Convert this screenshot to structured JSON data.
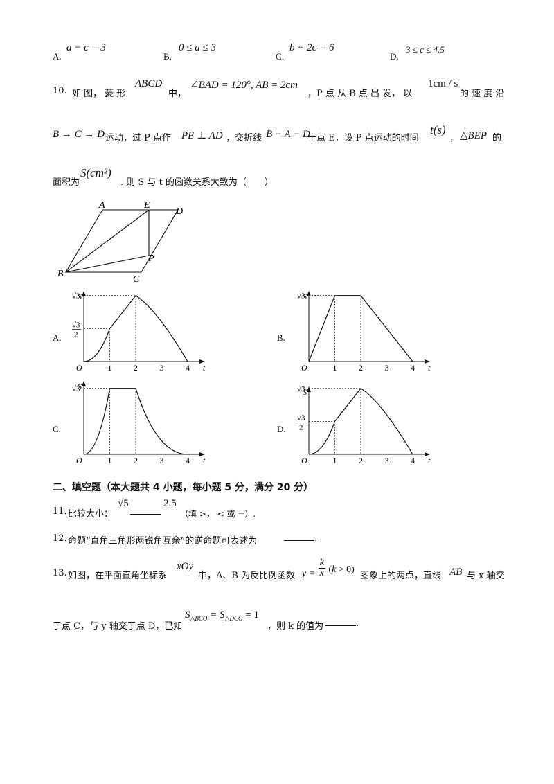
{
  "q9_options": [
    {
      "label": "A.",
      "expr": "a − c = 3"
    },
    {
      "label": "B.",
      "expr": "0 ≤ a ≤ 3"
    },
    {
      "label": "C.",
      "expr": "b + 2c = 6"
    },
    {
      "label": "D.",
      "expr": "3 ≤ c ≤ 4.5"
    }
  ],
  "q10": {
    "number": "10.",
    "line1_a": "如 图， 菱 形",
    "line1_shape": "ABCD",
    "line1_b": "中，",
    "line1_cond": "∠BAD = 120°, AB = 2cm",
    "line1_c": "，P 点 从 B 点 出 发， 以",
    "line1_speed": "1cm / s",
    "line1_d": "的 速 度 沿",
    "line2_path": "B → C → D",
    "line2_a": "运动，过 P 点作",
    "line2_perp": "PE ⊥ AD",
    "line2_b": "，交折线",
    "line2_fold": "B − A − D",
    "line2_c": "于点 E，设 P 点运动的时间",
    "line2_t": "t(s)",
    "line2_d": "，",
    "line2_tri": "△BEP",
    "line2_e": "的",
    "line3_a": "面积为",
    "line3_s": "S(cm²)",
    "line3_b": ". 则 S 与 t 的函数关系大致为（　　）",
    "figure_labels": {
      "A": "A",
      "B": "B",
      "C": "C",
      "D": "D",
      "E": "E",
      "P": "P"
    },
    "graph_options": [
      "A.",
      "B.",
      "C.",
      "D."
    ],
    "axis": {
      "y": "S",
      "x": "t",
      "origin": "O",
      "ticks": [
        "1",
        "2",
        "3",
        "4"
      ],
      "sqrt3": "√3",
      "half_num": "√3",
      "half_den": "2"
    }
  },
  "section2": {
    "title": "二、填空题（本大题共 4 小题，每小题 5 分，满分 20 分）"
  },
  "q11": {
    "number": "11.",
    "text": "比较大小：",
    "left": "√5",
    "right": "2.5",
    "hint": "（填 >， < 或 =）."
  },
  "q12": {
    "number": "12.",
    "text": "命题“直角三角形两锐角互余”的逆命题可表述为",
    "end": "."
  },
  "q13": {
    "number": "13.",
    "line1_a": "如图，在平面直角坐标系",
    "line1_sys": "xOy",
    "line1_b": "中，A、B 为反比例函数",
    "func": "y = k/x (k > 0)",
    "line1_c": "图象上的两点，直线",
    "line1_ab": "AB",
    "line1_d": "与 x 轴交",
    "line2_a": "于点 C，与 y 轴交于点 D，已知",
    "line2_cond": "S△BCO = S△DCO = 1",
    "line2_b": "，则 k 的值为",
    "end": "."
  },
  "chart_data": [
    {
      "type": "line",
      "option": "A",
      "x": [
        0,
        1,
        2,
        4
      ],
      "y": [
        "0",
        "√3/2",
        "√3",
        "0"
      ],
      "segments": [
        "curve",
        "line",
        "curve"
      ]
    },
    {
      "type": "line",
      "option": "B",
      "x": [
        0,
        1,
        2,
        4
      ],
      "y": [
        "0",
        "√3",
        "√3",
        "0"
      ],
      "segments": [
        "line",
        "line",
        "line"
      ]
    },
    {
      "type": "line",
      "option": "C",
      "x": [
        0,
        1,
        2,
        4
      ],
      "y": [
        "0",
        "√3",
        "√3",
        "0"
      ],
      "segments": [
        "curve",
        "line",
        "curve"
      ]
    },
    {
      "type": "line",
      "option": "D",
      "x": [
        0,
        1,
        2,
        4
      ],
      "y": [
        "0",
        "√3/2",
        "√3",
        "0"
      ],
      "segments": [
        "curve",
        "line",
        "curve"
      ]
    }
  ]
}
